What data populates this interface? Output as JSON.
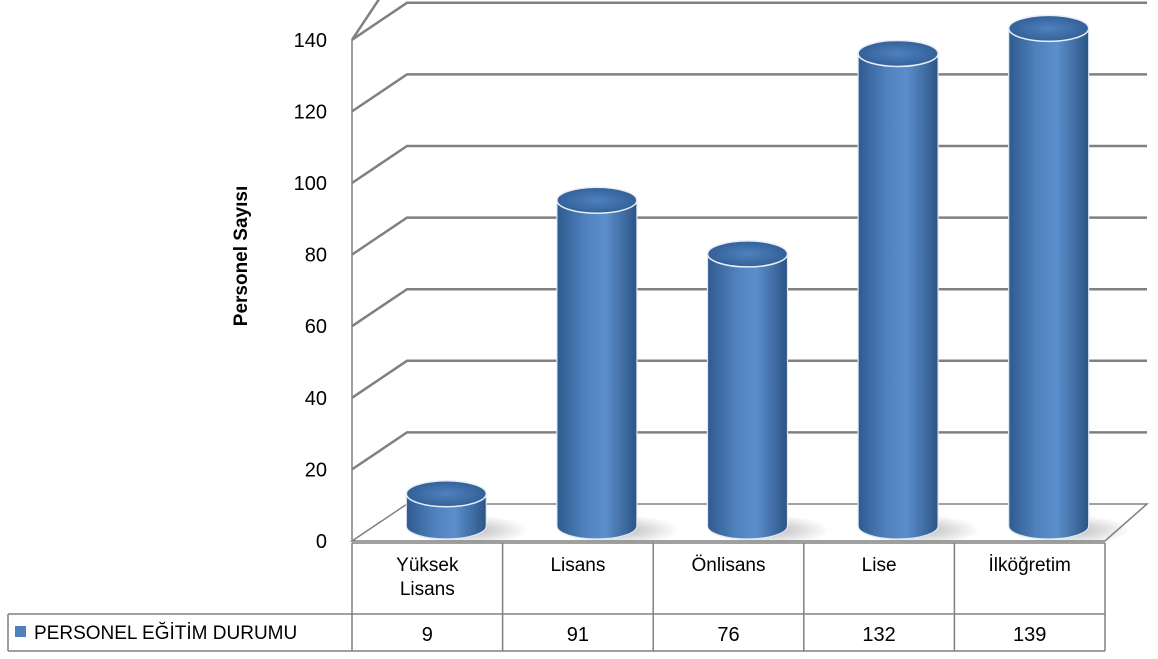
{
  "chart_data": {
    "type": "bar",
    "style": "3d-cylinder",
    "categories": [
      "Yüksek Lisans",
      "Lisans",
      "Önlisans",
      "Lise",
      "İlköğretim"
    ],
    "category_lines": [
      [
        "Yüksek",
        "Lisans"
      ],
      [
        "Lisans"
      ],
      [
        "Önlisans"
      ],
      [
        "Lise"
      ],
      [
        "İlköğretim"
      ]
    ],
    "series": [
      {
        "name": "PERSONEL EĞİTİM DURUMU",
        "values": [
          9,
          91,
          76,
          132,
          139
        ],
        "color": "#4F81BD"
      }
    ],
    "xlabel": "",
    "ylabel": "Personel  Sayısı",
    "ylim": [
      0,
      140
    ],
    "yticks": [
      0,
      20,
      40,
      60,
      80,
      100,
      120,
      140
    ],
    "grid": true,
    "legend": "data-table-left"
  }
}
